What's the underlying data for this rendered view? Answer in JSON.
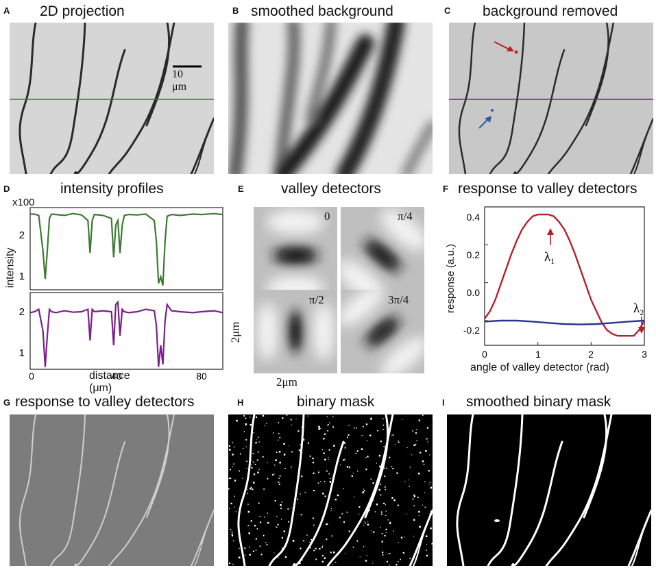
{
  "panels": {
    "A": {
      "letter": "A",
      "title": "2D projection",
      "scale_bar": "10 μm"
    },
    "B": {
      "letter": "B",
      "title": "smoothed background"
    },
    "C": {
      "letter": "C",
      "title": "background removed"
    },
    "D": {
      "letter": "D",
      "title": "intensity profiles",
      "multiplier": "x100",
      "ylabel": "intensity",
      "xlabel": "distance (μm)",
      "top_ticks": [
        "2",
        "1"
      ],
      "bottom_ticks": [
        "2",
        "1"
      ],
      "xticks": [
        "0",
        "40",
        "80"
      ]
    },
    "E": {
      "letter": "E",
      "title": "valley detectors",
      "angles": [
        "0",
        "π/4",
        "π/2",
        "3π/4"
      ],
      "size_v": "2μm",
      "size_h": "2μm"
    },
    "F": {
      "letter": "F",
      "title": "response to valley detectors",
      "ylabel": "response (a.u.)",
      "xlabel": "angle of valley detector (rad)",
      "lambda1": "λ",
      "lambda1_sub": "1",
      "lambda2": "λ",
      "lambda2_sub": "2"
    },
    "G": {
      "letter": "G",
      "title": "response to valley detectors"
    },
    "H": {
      "letter": "H",
      "title": "binary mask"
    },
    "I": {
      "letter": "I",
      "title": "smoothed binary mask"
    }
  },
  "colors": {
    "green": "#3c7a32",
    "purple": "#7b1f8a",
    "red": "#b3202a",
    "blue": "#27348b"
  },
  "chart_data": [
    {
      "type": "line",
      "panel": "D-top",
      "ylabel": "intensity",
      "multiplier": "x100",
      "xlim": [
        0,
        90
      ],
      "ylim": [
        0.7,
        2.6
      ],
      "series": [
        {
          "x": [
            0,
            2,
            4,
            6,
            7,
            8,
            9,
            10,
            12,
            16,
            20,
            24,
            27,
            28,
            29,
            30,
            34,
            38,
            39,
            40,
            41,
            42,
            43,
            44,
            46,
            50,
            54,
            58,
            59,
            60,
            61,
            62,
            63,
            64,
            66,
            70,
            76,
            80,
            86,
            90
          ],
          "y": [
            2.45,
            2.45,
            2.42,
            1.6,
            0.95,
            1.6,
            2.35,
            2.45,
            2.44,
            2.42,
            2.46,
            2.43,
            2.3,
            1.55,
            2.3,
            2.44,
            2.42,
            2.35,
            1.45,
            2.2,
            2.3,
            1.55,
            2.2,
            2.42,
            2.44,
            2.43,
            2.45,
            2.3,
            1.8,
            0.85,
            1.0,
            0.8,
            1.8,
            2.4,
            2.44,
            2.42,
            2.45,
            2.44,
            2.46,
            2.44
          ]
        }
      ]
    },
    {
      "type": "line",
      "panel": "D-bottom",
      "xlabel": "distance (μm)",
      "xlim": [
        0,
        90
      ],
      "ylim": [
        0.7,
        2.3
      ],
      "series": [
        {
          "x": [
            0,
            2,
            4,
            6,
            7,
            8,
            9,
            10,
            12,
            16,
            20,
            24,
            27,
            28,
            29,
            30,
            34,
            38,
            39,
            40,
            41,
            42,
            43,
            44,
            46,
            50,
            54,
            58,
            59,
            60,
            61,
            62,
            63,
            64,
            66,
            70,
            76,
            80,
            86,
            90
          ],
          "y": [
            1.88,
            1.9,
            1.95,
            1.5,
            0.75,
            1.4,
            1.95,
            1.9,
            1.88,
            1.92,
            1.89,
            1.9,
            1.95,
            1.3,
            1.95,
            1.9,
            1.92,
            1.9,
            1.2,
            2.05,
            2.1,
            1.4,
            1.95,
            1.9,
            1.88,
            1.9,
            1.95,
            1.92,
            1.6,
            0.75,
            1.2,
            0.8,
            1.7,
            2.05,
            1.92,
            1.9,
            1.88,
            1.9,
            1.92,
            1.88
          ]
        }
      ]
    },
    {
      "type": "line",
      "panel": "F",
      "xlabel": "angle of valley detector (rad)",
      "ylabel": "response (a.u.)",
      "xlim": [
        0,
        3
      ],
      "ylim": [
        -0.33,
        0.4
      ],
      "xticks": [
        "0",
        "1",
        "2",
        "3"
      ],
      "yticks": [
        "0.4",
        "0.2",
        "0.0",
        "-0.2"
      ],
      "series": [
        {
          "color": "#b3202a",
          "x": [
            0,
            0.1,
            0.2,
            0.3,
            0.4,
            0.5,
            0.6,
            0.7,
            0.8,
            0.9,
            1.0,
            1.1,
            1.2,
            1.3,
            1.4,
            1.5,
            1.6,
            1.7,
            1.8,
            1.9,
            2.0,
            2.1,
            2.2,
            2.3,
            2.4,
            2.5,
            2.6,
            2.7,
            2.8,
            2.9,
            3.0
          ],
          "y": [
            -0.19,
            -0.15,
            -0.09,
            -0.01,
            0.07,
            0.15,
            0.22,
            0.28,
            0.32,
            0.35,
            0.36,
            0.36,
            0.36,
            0.35,
            0.32,
            0.28,
            0.22,
            0.15,
            0.07,
            -0.01,
            -0.09,
            -0.15,
            -0.21,
            -0.25,
            -0.27,
            -0.28,
            -0.28,
            -0.28,
            -0.28,
            -0.25,
            -0.2
          ]
        },
        {
          "color": "#27348b",
          "x": [
            0,
            0.3,
            0.6,
            0.9,
            1.2,
            1.5,
            1.8,
            2.1,
            2.4,
            2.7,
            3.0
          ],
          "y": [
            -0.205,
            -0.2,
            -0.2,
            -0.205,
            -0.212,
            -0.218,
            -0.22,
            -0.218,
            -0.212,
            -0.205,
            -0.2
          ]
        }
      ]
    }
  ]
}
